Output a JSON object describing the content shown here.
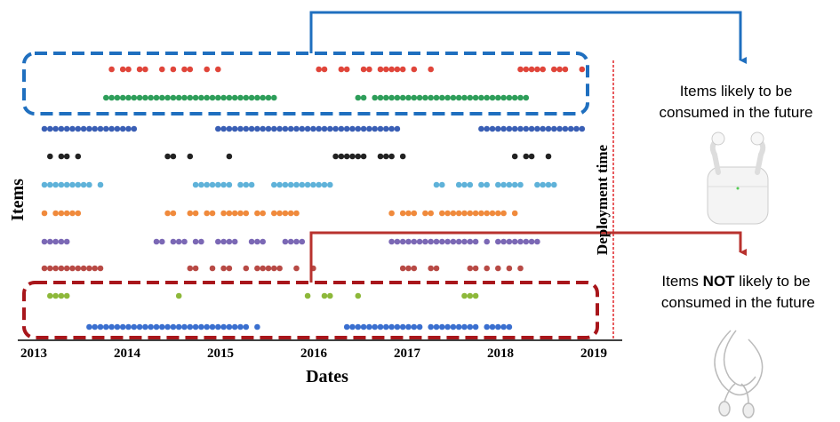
{
  "y_axis_label": "Items",
  "x_axis_label": "Dates",
  "x_ticks": [
    "2013",
    "2014",
    "2015",
    "2016",
    "2017",
    "2018",
    "2019"
  ],
  "deployment_label": "Deployment time",
  "top_note": {
    "line1": "Items likely to be",
    "line2": "consumed in the future"
  },
  "bottom_note": {
    "line1_pre": "Items ",
    "line1_bold": "NOT",
    "line1_post": " likely to be",
    "line2": " consumed in the future"
  }
}
